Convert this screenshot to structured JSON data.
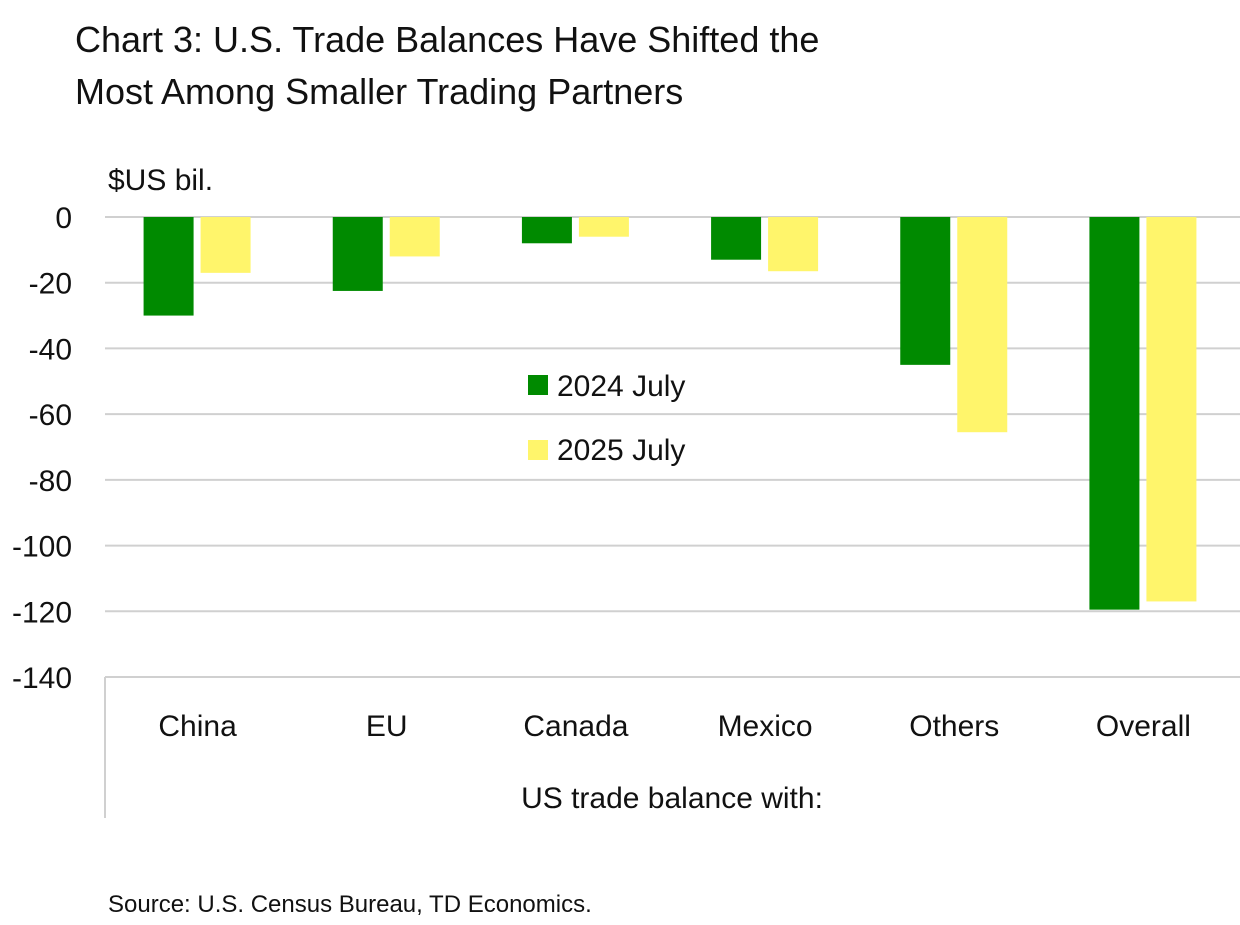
{
  "chart_data": {
    "type": "bar",
    "title": "Chart 3: U.S. Trade Balances Have Shifted the Most Among Smaller Trading Partners",
    "title_lines": [
      "Chart 3: U.S. Trade Balances Have Shifted the",
      "Most Among Smaller Trading Partners"
    ],
    "ylabel": "$US bil.",
    "xlabel": "US trade balance with:",
    "ylim": [
      -140,
      0
    ],
    "yticks": [
      0,
      -20,
      -40,
      -60,
      -80,
      -100,
      -120,
      -140
    ],
    "grid": true,
    "legend_placement": "center",
    "categories": [
      "China",
      "EU",
      "Canada",
      "Mexico",
      "Others",
      "Overall"
    ],
    "series": [
      {
        "name": "2024 July",
        "color": "#008a00",
        "values": [
          -30,
          -22.5,
          -8,
          -13,
          -45,
          -119.5
        ]
      },
      {
        "name": "2025 July",
        "color": "#fff56b",
        "values": [
          -17,
          -12,
          -6,
          -16.5,
          -65.5,
          -117
        ]
      }
    ],
    "source": "Source: U.S. Census Bureau, TD Economics."
  }
}
